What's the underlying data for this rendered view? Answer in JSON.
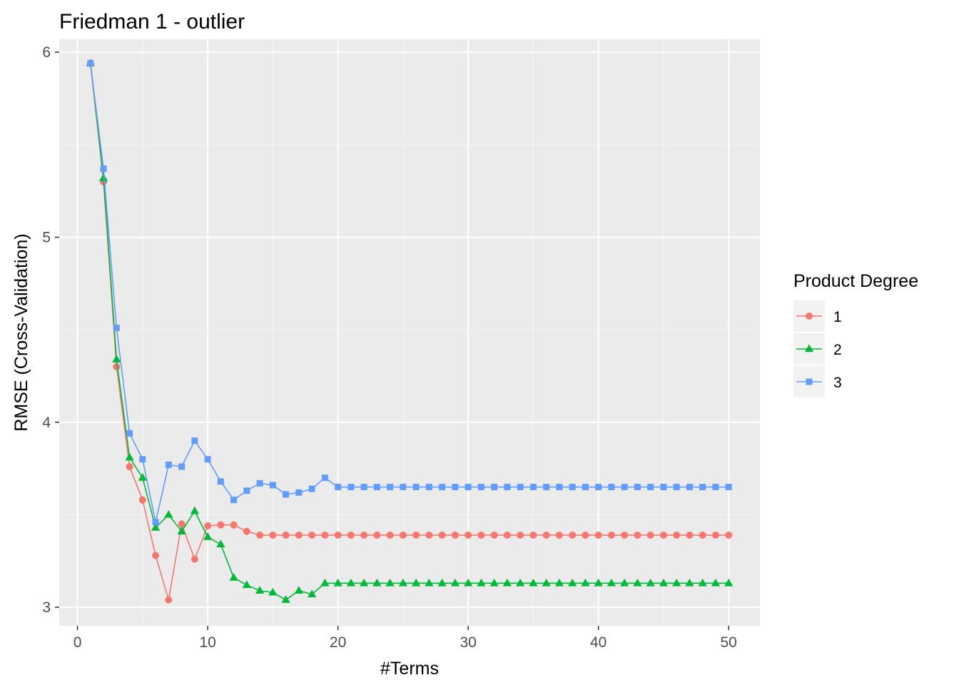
{
  "chart_data": {
    "type": "line",
    "title": "Friedman 1 - outlier",
    "xlabel": "#Terms",
    "ylabel": "RMSE (Cross-Validation)",
    "xlim": [
      -1.4,
      52.4
    ],
    "ylim": [
      2.9,
      6.07
    ],
    "xticks": [
      0,
      10,
      20,
      30,
      40,
      50
    ],
    "yticks": [
      3,
      4,
      5,
      6
    ],
    "grid": true,
    "legend": {
      "title": "Product Degree",
      "position": "right"
    },
    "series": [
      {
        "name": "1",
        "color": "#F8766D",
        "marker": "circle",
        "x": [
          1,
          2,
          3,
          4,
          5,
          6,
          7,
          8,
          9,
          10,
          11,
          12,
          13,
          14,
          15,
          16,
          17,
          18,
          19,
          20,
          21,
          22,
          23,
          24,
          25,
          26,
          27,
          28,
          29,
          30,
          31,
          32,
          33,
          34,
          35,
          36,
          37,
          38,
          39,
          40,
          41,
          42,
          43,
          44,
          45,
          46,
          47,
          48,
          49,
          50
        ],
        "values": [
          5.94,
          5.3,
          4.3,
          3.76,
          3.58,
          3.28,
          3.04,
          3.45,
          3.26,
          3.44,
          3.445,
          3.445,
          3.41,
          3.39,
          3.39,
          3.39,
          3.39,
          3.39,
          3.39,
          3.39,
          3.39,
          3.39,
          3.39,
          3.39,
          3.39,
          3.39,
          3.39,
          3.39,
          3.39,
          3.39,
          3.39,
          3.39,
          3.39,
          3.39,
          3.39,
          3.39,
          3.39,
          3.39,
          3.39,
          3.39,
          3.39,
          3.39,
          3.39,
          3.39,
          3.39,
          3.39,
          3.39,
          3.39,
          3.39,
          3.39
        ]
      },
      {
        "name": "2",
        "color": "#00BA38",
        "marker": "triangle",
        "x": [
          1,
          2,
          3,
          4,
          5,
          6,
          7,
          8,
          9,
          10,
          11,
          12,
          13,
          14,
          15,
          16,
          17,
          18,
          19,
          20,
          21,
          22,
          23,
          24,
          25,
          26,
          27,
          28,
          29,
          30,
          31,
          32,
          33,
          34,
          35,
          36,
          37,
          38,
          39,
          40,
          41,
          42,
          43,
          44,
          45,
          46,
          47,
          48,
          49,
          50
        ],
        "values": [
          5.94,
          5.32,
          4.34,
          3.81,
          3.7,
          3.43,
          3.5,
          3.41,
          3.52,
          3.38,
          3.34,
          3.16,
          3.12,
          3.09,
          3.08,
          3.04,
          3.09,
          3.07,
          3.13,
          3.13,
          3.13,
          3.13,
          3.13,
          3.13,
          3.13,
          3.13,
          3.13,
          3.13,
          3.13,
          3.13,
          3.13,
          3.13,
          3.13,
          3.13,
          3.13,
          3.13,
          3.13,
          3.13,
          3.13,
          3.13,
          3.13,
          3.13,
          3.13,
          3.13,
          3.13,
          3.13,
          3.13,
          3.13,
          3.13,
          3.13
        ]
      },
      {
        "name": "3",
        "color": "#619CFF",
        "marker": "square",
        "x": [
          1,
          2,
          3,
          4,
          5,
          6,
          7,
          8,
          9,
          10,
          11,
          12,
          13,
          14,
          15,
          16,
          17,
          18,
          19,
          20,
          21,
          22,
          23,
          24,
          25,
          26,
          27,
          28,
          29,
          30,
          31,
          32,
          33,
          34,
          35,
          36,
          37,
          38,
          39,
          40,
          41,
          42,
          43,
          44,
          45,
          46,
          47,
          48,
          49,
          50
        ],
        "values": [
          5.94,
          5.37,
          4.51,
          3.94,
          3.8,
          3.46,
          3.77,
          3.76,
          3.9,
          3.8,
          3.68,
          3.58,
          3.63,
          3.67,
          3.66,
          3.61,
          3.62,
          3.64,
          3.7,
          3.65,
          3.65,
          3.65,
          3.65,
          3.65,
          3.65,
          3.65,
          3.65,
          3.65,
          3.65,
          3.65,
          3.65,
          3.65,
          3.65,
          3.65,
          3.65,
          3.65,
          3.65,
          3.65,
          3.65,
          3.65,
          3.65,
          3.65,
          3.65,
          3.65,
          3.65,
          3.65,
          3.65,
          3.65,
          3.65,
          3.65
        ]
      }
    ]
  }
}
